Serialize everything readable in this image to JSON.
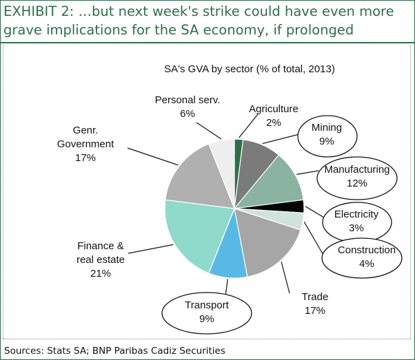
{
  "header": {
    "title": "EXHIBIT 2: …but next week's strike could have even more grave implications for the SA economy, if prolonged"
  },
  "footer": {
    "source": "Sources: Stats SA; BNP Paribas Cadiz Securities"
  },
  "colors": {
    "brand": "#2e6e4a"
  },
  "chart_data": {
    "type": "pie",
    "title": "SA's GVA by sector (% of total, 2013)",
    "start": "12 o'clock, clockwise",
    "slices": [
      {
        "name": "Agriculture",
        "label": [
          "Agriculture",
          "2%"
        ],
        "value": 2,
        "color": "#2e6e4a",
        "callout": "none"
      },
      {
        "name": "Mining",
        "label": [
          "Mining",
          "9%"
        ],
        "value": 9,
        "color": "#7b7b7b",
        "callout": "ellipse"
      },
      {
        "name": "Manufacturing",
        "label": [
          "Manufacturing",
          "12%"
        ],
        "value": 12,
        "color": "#8ab3a1",
        "callout": "ellipse"
      },
      {
        "name": "Electricity",
        "label": [
          "Electricity",
          "3%"
        ],
        "value": 3,
        "color": "#050505",
        "callout": "ellipse"
      },
      {
        "name": "Construction",
        "label": [
          "Construction",
          "4%"
        ],
        "value": 4,
        "color": "#cfe2dc",
        "callout": "ellipse"
      },
      {
        "name": "Trade",
        "label": [
          "Trade",
          "17%"
        ],
        "value": 17,
        "color": "#a6a6a6",
        "callout": "none"
      },
      {
        "name": "Transport",
        "label": [
          "Transport",
          "9%"
        ],
        "value": 9,
        "color": "#5ab8e6",
        "callout": "ellipse"
      },
      {
        "name": "Finance & real estate",
        "label": [
          "Finance &",
          "real estate",
          "21%"
        ],
        "value": 21,
        "color": "#8fdacb",
        "callout": "none"
      },
      {
        "name": "Genr. Government",
        "label": [
          "Genr.",
          "Government",
          "17%"
        ],
        "value": 17,
        "color": "#b0b0b0",
        "callout": "none"
      },
      {
        "name": "Personal serv.",
        "label": [
          "Personal serv.",
          "6%"
        ],
        "value": 6,
        "color": "#eeeeee",
        "callout": "none"
      }
    ]
  }
}
